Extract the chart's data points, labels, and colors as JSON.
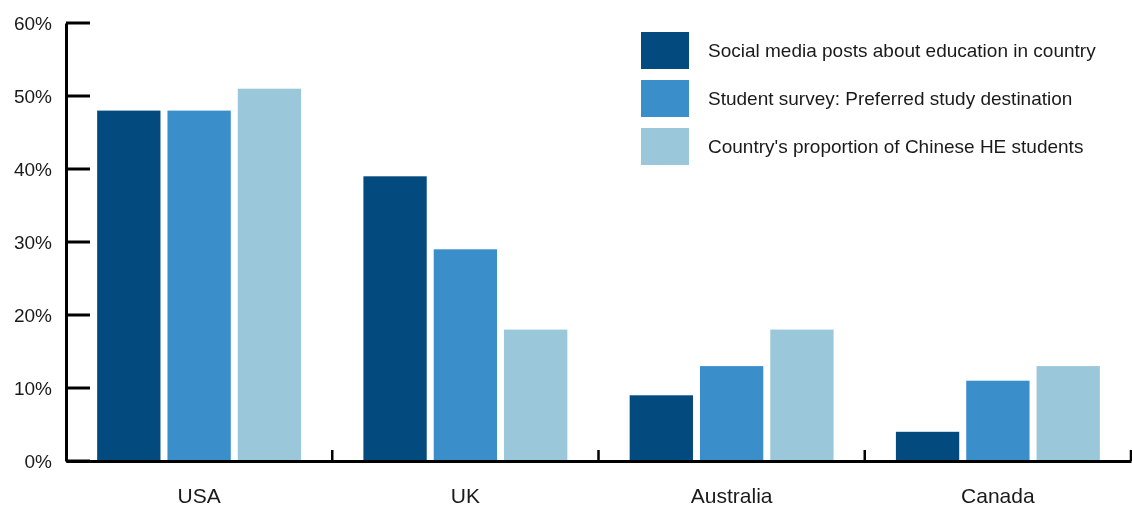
{
  "chart_data": {
    "type": "bar",
    "categories": [
      "USA",
      "UK",
      "Australia",
      "Canada"
    ],
    "series": [
      {
        "name": "Social media posts about education in country",
        "color": "#034a7e",
        "values": [
          48,
          39,
          9,
          4
        ]
      },
      {
        "name": "Student survey: Preferred study destination",
        "color": "#3a8fcb",
        "values": [
          48,
          29,
          13,
          11
        ]
      },
      {
        "name": "Country's proportion of Chinese HE students",
        "color": "#9bc7da",
        "values": [
          51,
          18,
          18,
          13
        ]
      }
    ],
    "ylim": [
      0,
      60
    ],
    "yticks": [
      {
        "value": 0,
        "label": "0%"
      },
      {
        "value": 10,
        "label": "10%"
      },
      {
        "value": 20,
        "label": "20%"
      },
      {
        "value": 30,
        "label": "30%"
      },
      {
        "value": 40,
        "label": "40%"
      },
      {
        "value": 50,
        "label": "50%"
      },
      {
        "value": 60,
        "label": "60%"
      }
    ],
    "legend": "top right",
    "grid": false
  }
}
